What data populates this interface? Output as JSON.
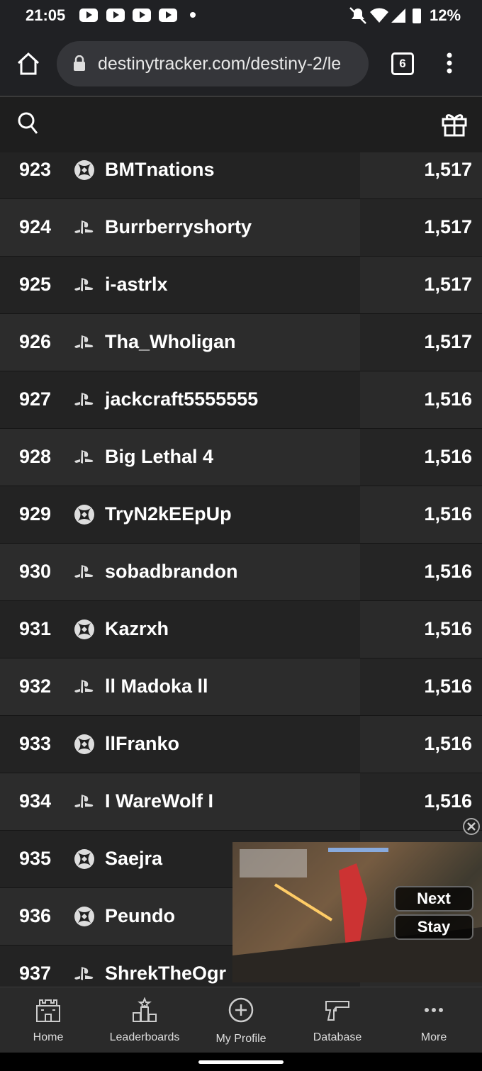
{
  "status": {
    "time": "21:05",
    "battery": "12%"
  },
  "browser": {
    "url": "destinytracker.com/destiny-2/le",
    "tabs": "6"
  },
  "rows": [
    {
      "rank": "923",
      "name": "BMTnations",
      "score": "1,517"
    },
    {
      "rank": "924",
      "name": "Burrberryshorty",
      "score": "1,517"
    },
    {
      "rank": "925",
      "name": "i-astrlx",
      "score": "1,517"
    },
    {
      "rank": "926",
      "name": "Tha_Wholigan",
      "score": "1,517"
    },
    {
      "rank": "927",
      "name": "jackcraft5555555",
      "score": "1,516"
    },
    {
      "rank": "928",
      "name": "Big Lethal 4",
      "score": "1,516"
    },
    {
      "rank": "929",
      "name": "TryN2kEEpUp",
      "score": "1,516"
    },
    {
      "rank": "930",
      "name": "sobadbrandon",
      "score": "1,516"
    },
    {
      "rank": "931",
      "name": "Kazrxh",
      "score": "1,516"
    },
    {
      "rank": "932",
      "name": "ll Madoka ll",
      "score": "1,516"
    },
    {
      "rank": "933",
      "name": "llFranko",
      "score": "1,516"
    },
    {
      "rank": "934",
      "name": "I WareWolf I",
      "score": "1,516"
    },
    {
      "rank": "935",
      "name": "Saejra"
    },
    {
      "rank": "936",
      "name": "Peundo"
    },
    {
      "rank": "937",
      "name": "ShrekTheOgr"
    }
  ],
  "video": {
    "next": "Next",
    "stay": "Stay"
  },
  "nav": [
    "Home",
    "Leaderboards",
    "My Profile",
    "Database",
    "More"
  ]
}
